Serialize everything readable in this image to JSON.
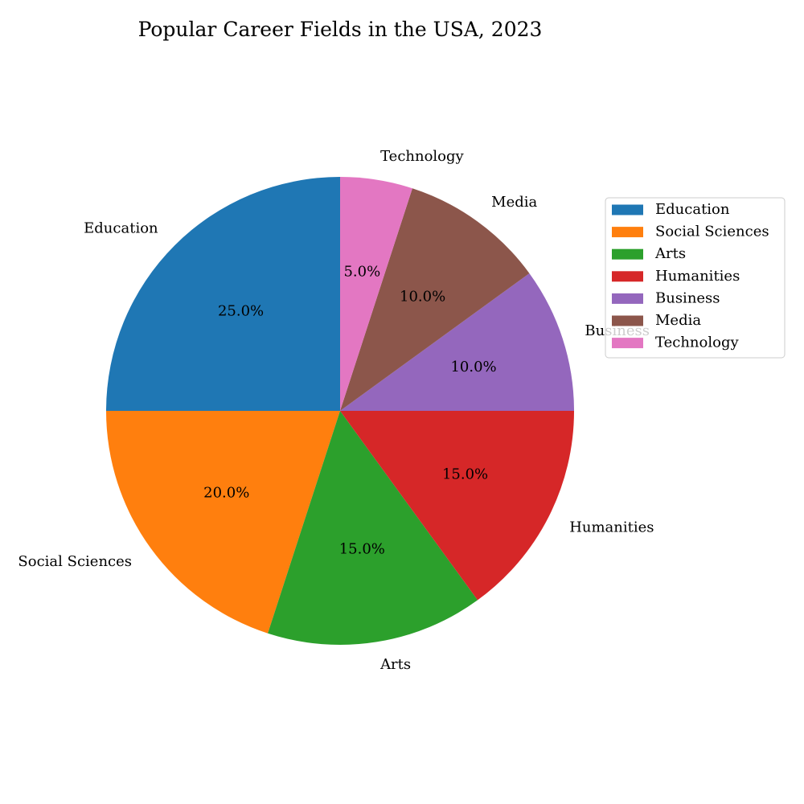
{
  "chart_data": {
    "type": "pie",
    "title": "Popular Career Fields in the USA, 2023",
    "categories": [
      "Education",
      "Social Sciences",
      "Arts",
      "Humanities",
      "Business",
      "Media",
      "Technology"
    ],
    "values": [
      25.0,
      20.0,
      15.0,
      15.0,
      10.0,
      10.0,
      5.0
    ],
    "percent_labels": [
      "25.0%",
      "20.0%",
      "15.0%",
      "15.0%",
      "10.0%",
      "10.0%",
      "5.0%"
    ],
    "colors": [
      "#1f77b4",
      "#ff7f0e",
      "#2ca02c",
      "#d62728",
      "#9467bd",
      "#8c564b",
      "#e377c2"
    ],
    "start_angle_deg": 90,
    "direction": "counterclockwise",
    "legend_placement": "right"
  }
}
